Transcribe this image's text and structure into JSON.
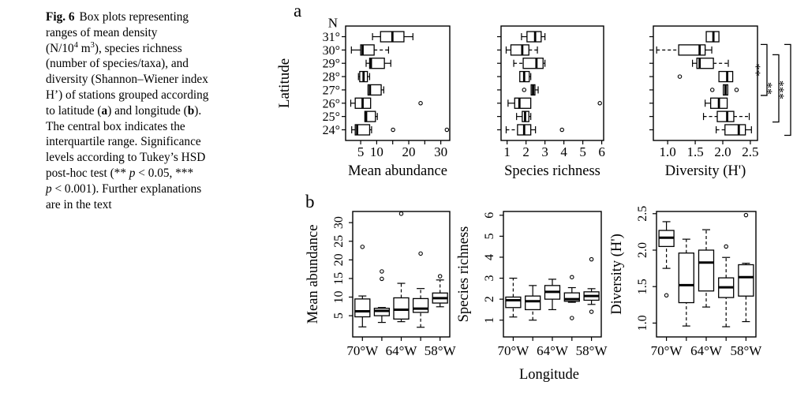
{
  "page": {
    "background": "#ffffff",
    "ink": "#000000"
  },
  "figure": {
    "panel_a_label": "a",
    "panel_b_label": "b",
    "caption_lines": [
      [
        {
          "t": "Fig. 6",
          "b": true,
          "gap": true
        },
        {
          "t": "Box plots representing"
        }
      ],
      [
        {
          "t": "ranges of mean density"
        }
      ],
      [
        {
          "t": "(N/10"
        },
        {
          "t": "4",
          "sup": true
        },
        {
          "t": " m"
        },
        {
          "t": "3",
          "sup": true
        },
        {
          "t": "), species richness"
        }
      ],
      [
        {
          "t": "(number of species/taxa), and"
        }
      ],
      [
        {
          "t": "diversity (Shannon–Wiener index"
        }
      ],
      [
        {
          "t": "H’) of stations grouped according"
        }
      ],
      [
        {
          "t": "to latitude ("
        },
        {
          "t": "a",
          "b": true
        },
        {
          "t": ") and longitude ("
        },
        {
          "t": "b",
          "b": true
        },
        {
          "t": ")."
        }
      ],
      [
        {
          "t": "The central box indicates the"
        }
      ],
      [
        {
          "t": "interquartile range. Significance"
        }
      ],
      [
        {
          "t": "levels according to Tukey’s HSD"
        }
      ],
      [
        {
          "t": "post-hoc test (** "
        },
        {
          "t": "p",
          "i": true
        },
        {
          "t": " < 0.05, ***"
        }
      ],
      [
        {
          "t": "p",
          "i": true
        },
        {
          "t": " < 0.001). Further explanations"
        }
      ],
      [
        {
          "t": "are in the text"
        }
      ]
    ]
  },
  "chart_data": [
    {
      "id": "lat-mean-abundance",
      "type": "boxplot",
      "orientation": "horizontal",
      "title": "Mean abundance",
      "ylabel": "Latitude",
      "y_header": "N",
      "show_category_labels": true,
      "categories": [
        "31°",
        "30°",
        "29°",
        "28°",
        "27°",
        "26°",
        "25°",
        "24°"
      ],
      "xlim": [
        0.3,
        32.8
      ],
      "xticks": [
        5,
        10,
        15,
        20,
        25,
        30
      ],
      "xtick_labels": [
        "5",
        "10",
        "",
        "20",
        "",
        "30"
      ],
      "boxes": [
        {
          "lo": 8.7,
          "q1": 11.2,
          "med": 14.9,
          "q3": 18.5,
          "hi": 21.3,
          "outliers": []
        },
        {
          "lo": 2.1,
          "q1": 5.0,
          "med": 5.6,
          "q3": 9.2,
          "hi": 13.7,
          "hi_dash": true,
          "outliers": []
        },
        {
          "lo": 6.7,
          "q1": 7.8,
          "med": 8.2,
          "q3": 12.4,
          "hi": 14.4,
          "outliers": []
        },
        {
          "lo": 4.3,
          "q1": 4.7,
          "med": 5.9,
          "q3": 7.1,
          "hi": 7.8,
          "outliers": []
        },
        {
          "lo": 7.3,
          "q1": 7.3,
          "med": 7.9,
          "q3": 11.4,
          "hi": 12.2,
          "outliers": []
        },
        {
          "lo": 1.9,
          "q1": 3.3,
          "med": 5.6,
          "q3": 8.1,
          "hi": 8.1,
          "outliers": [
            23.7
          ]
        },
        {
          "lo": 6.3,
          "q1": 6.3,
          "med": 6.7,
          "q3": 9.6,
          "hi": 10.2,
          "outliers": []
        },
        {
          "lo": 2.2,
          "q1": 3.3,
          "med": 3.9,
          "q3": 7.8,
          "hi": 8.4,
          "outliers": [
            15.1,
            31.9
          ]
        }
      ]
    },
    {
      "id": "lat-species-richness",
      "type": "boxplot",
      "orientation": "horizontal",
      "title": "Species richness",
      "show_category_labels": false,
      "categories": [
        "31°",
        "30°",
        "29°",
        "28°",
        "27°",
        "26°",
        "25°",
        "24°"
      ],
      "xlim": [
        0.68,
        6.1
      ],
      "xticks": [
        1,
        2,
        3,
        4,
        5,
        6
      ],
      "xtick_labels": [
        "1",
        "2",
        "3",
        "4",
        "5",
        "6"
      ],
      "boxes": [
        {
          "lo": 1.76,
          "q1": 2.05,
          "med": 2.48,
          "q3": 2.8,
          "hi": 3.0,
          "outliers": []
        },
        {
          "lo": 0.95,
          "q1": 1.2,
          "med": 1.8,
          "q3": 2.15,
          "hi": 2.6,
          "hi_dash": true,
          "outliers": []
        },
        {
          "lo": 1.35,
          "lo_dash": true,
          "q1": 1.85,
          "med": 2.55,
          "q3": 2.9,
          "hi": 3.0,
          "outliers": []
        },
        {
          "lo": 1.67,
          "q1": 1.67,
          "med": 1.9,
          "q3": 2.17,
          "hi": 2.25,
          "outliers": []
        },
        {
          "lo": 2.27,
          "q1": 2.27,
          "med": 2.37,
          "q3": 2.47,
          "hi": 2.64,
          "outliers": [
            1.9
          ]
        },
        {
          "lo": 1.05,
          "q1": 1.4,
          "med": 1.65,
          "q3": 2.25,
          "hi": 2.25,
          "outliers": [
            5.9
          ]
        },
        {
          "lo": 1.5,
          "q1": 1.8,
          "med": 1.95,
          "q3": 2.15,
          "hi": 2.25,
          "outliers": []
        },
        {
          "lo": 0.95,
          "lo_dash": true,
          "q1": 1.55,
          "med": 1.9,
          "q3": 2.25,
          "hi": 2.5,
          "outliers": [
            3.9
          ]
        }
      ]
    },
    {
      "id": "lat-diversity",
      "type": "boxplot",
      "orientation": "horizontal",
      "title": "Diversity (H')",
      "show_category_labels": false,
      "categories": [
        "31°",
        "30°",
        "29°",
        "28°",
        "27°",
        "26°",
        "25°",
        "24°"
      ],
      "xlim": [
        0.74,
        2.63
      ],
      "xticks": [
        1.0,
        1.5,
        2.0,
        2.5
      ],
      "xtick_labels": [
        "1.0",
        "1.5",
        "2.0",
        "2.5"
      ],
      "boxes": [
        {
          "lo": 1.7,
          "q1": 1.7,
          "med": 1.83,
          "q3": 1.93,
          "hi": 1.93,
          "outliers": []
        },
        {
          "lo": 0.8,
          "lo_dash": true,
          "q1": 1.2,
          "med": 1.58,
          "q3": 1.68,
          "hi": 1.8,
          "outliers": []
        },
        {
          "lo": 1.45,
          "q1": 1.53,
          "med": 1.58,
          "q3": 1.83,
          "hi": 2.1,
          "hi_dash": true,
          "outliers": []
        },
        {
          "lo": 1.93,
          "q1": 1.93,
          "med": 2.08,
          "q3": 2.18,
          "hi": 2.18,
          "outliers": [
            1.22
          ]
        },
        {
          "lo": 2.01,
          "q1": 2.01,
          "med": 2.05,
          "q3": 2.09,
          "hi": 2.09,
          "outliers": [
            1.81,
            2.25
          ]
        },
        {
          "lo": 1.68,
          "q1": 1.78,
          "med": 1.93,
          "q3": 2.08,
          "hi": 2.08,
          "outliers": []
        },
        {
          "lo": 1.65,
          "lo_dash": true,
          "q1": 1.9,
          "med": 2.08,
          "q3": 2.2,
          "hi": 2.48,
          "hi_dash": true,
          "outliers": []
        },
        {
          "lo": 1.88,
          "lo_dash": true,
          "q1": 2.04,
          "med": 2.29,
          "q3": 2.41,
          "hi": 2.52,
          "outliers": []
        }
      ],
      "significance_brackets": [
        {
          "rows": [
            "30°",
            "27°"
          ],
          "label": "**"
        },
        {
          "rows": [
            "30°",
            "25°"
          ],
          "label": "**"
        },
        {
          "rows": [
            "30°",
            "24°"
          ],
          "label": "***"
        }
      ]
    },
    {
      "id": "lon-mean-abundance",
      "type": "boxplot",
      "orientation": "vertical",
      "ylabel_title": "Mean abundance",
      "categories": [
        "70°W",
        "",
        "64°W",
        "",
        "58°W"
      ],
      "ylim": [
        -0.7,
        33
      ],
      "yticks": [
        5,
        10,
        15,
        20,
        25,
        30
      ],
      "ytick_labels": [
        "5",
        "10",
        "15",
        "20",
        "25",
        "30"
      ],
      "boxes": [
        {
          "lo": 2.0,
          "q1": 4.7,
          "med": 6.2,
          "q3": 9.5,
          "hi": 10.3,
          "outliers": [
            23.5
          ]
        },
        {
          "lo": 3.2,
          "q1": 5.0,
          "med": 6.3,
          "q3": 7.0,
          "hi": 7.2,
          "outliers": [
            14.9,
            16.9
          ]
        },
        {
          "lo": 3.4,
          "q1": 4.1,
          "med": 6.6,
          "q3": 9.8,
          "hi": 13.7,
          "hi_dash": true,
          "outliers": [
            32.4
          ]
        },
        {
          "lo": 1.9,
          "lo_dash": true,
          "q1": 5.9,
          "med": 6.9,
          "q3": 9.6,
          "hi": 12.3,
          "hi_dash": true,
          "outliers": [
            21.7
          ]
        },
        {
          "lo": 7.4,
          "q1": 8.4,
          "med": 9.7,
          "q3": 11.1,
          "hi": 14.6,
          "hi_dash": true,
          "outliers": [
            15.6
          ]
        }
      ]
    },
    {
      "id": "lon-species-richness",
      "type": "boxplot",
      "orientation": "vertical",
      "ylabel_title": "Species richness",
      "xlabel": "Longitude",
      "categories": [
        "70°W",
        "",
        "64°W",
        "",
        "58°W"
      ],
      "ylim": [
        0.2,
        6.18
      ],
      "yticks": [
        1,
        2,
        3,
        4,
        5,
        6
      ],
      "ytick_labels": [
        "1",
        "2",
        "3",
        "4",
        "5",
        "6"
      ],
      "boxes": [
        {
          "lo": 1.15,
          "lo_dash": true,
          "q1": 1.6,
          "med": 1.95,
          "q3": 2.1,
          "hi": 3.0,
          "hi_dash": true,
          "outliers": []
        },
        {
          "lo": 1.0,
          "lo_dash": true,
          "q1": 1.5,
          "med": 1.9,
          "q3": 2.15,
          "hi": 2.65,
          "outliers": []
        },
        {
          "lo": 1.5,
          "q1": 2.0,
          "med": 2.35,
          "q3": 2.65,
          "hi": 2.95,
          "outliers": []
        },
        {
          "lo": 1.85,
          "q1": 1.9,
          "med": 2.0,
          "q3": 2.3,
          "hi": 2.55,
          "outliers": [
            3.05,
            1.1
          ]
        },
        {
          "lo": 1.75,
          "q1": 1.95,
          "med": 2.15,
          "q3": 2.35,
          "hi": 2.5,
          "outliers": [
            3.9,
            1.4
          ]
        }
      ]
    },
    {
      "id": "lon-diversity",
      "type": "boxplot",
      "orientation": "vertical",
      "ylabel_title": "Diversity (H')",
      "categories": [
        "70°W",
        "",
        "64°W",
        "",
        "58°W"
      ],
      "ylim": [
        0.81,
        2.53
      ],
      "yticks": [
        1.0,
        1.5,
        2.0,
        2.5
      ],
      "ytick_labels": [
        "1.0",
        "1.5",
        "2.0",
        "2.5"
      ],
      "boxes": [
        {
          "lo": 1.75,
          "lo_dash": true,
          "q1": 2.05,
          "med": 2.17,
          "q3": 2.27,
          "hi": 2.39,
          "outliers": [
            1.38
          ]
        },
        {
          "lo": 0.96,
          "lo_dash": true,
          "q1": 1.28,
          "med": 1.52,
          "q3": 1.96,
          "hi": 2.15,
          "hi_dash": true,
          "outliers": []
        },
        {
          "lo": 1.22,
          "lo_dash": true,
          "q1": 1.44,
          "med": 1.83,
          "q3": 2.0,
          "hi": 2.28,
          "hi_dash": true,
          "outliers": []
        },
        {
          "lo": 0.95,
          "lo_dash": true,
          "q1": 1.35,
          "med": 1.49,
          "q3": 1.62,
          "hi": 1.9,
          "hi_dash": true,
          "outliers": [
            2.05
          ]
        },
        {
          "lo": 1.02,
          "lo_dash": true,
          "q1": 1.37,
          "med": 1.63,
          "q3": 1.8,
          "hi": 1.82,
          "outliers": [
            2.48
          ]
        }
      ]
    }
  ]
}
